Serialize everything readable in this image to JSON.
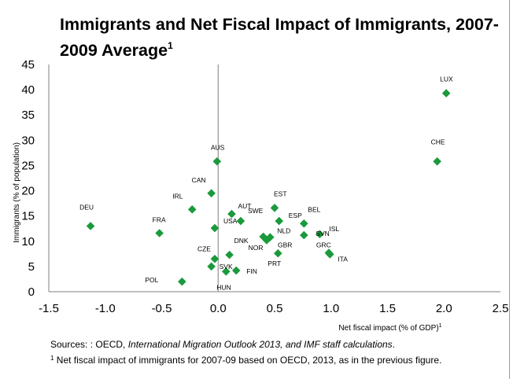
{
  "chart_data": {
    "type": "scatter",
    "title": "Immigrants and Net Fiscal Impact of Immigrants, 2007-2009 Average",
    "title_superscript": "1",
    "xlabel": "Net fiscal impact (% of GDP)",
    "xlabel_superscript": "1",
    "ylabel": "Immigrants (% of population)",
    "xlim": [
      -1.5,
      2.5
    ],
    "ylim": [
      0,
      45
    ],
    "xticks": [
      "-1.5",
      "-1.0",
      "-0.5",
      "0.0",
      "0.5",
      "1.0",
      "1.5",
      "2.0",
      "2.5"
    ],
    "yticks": [
      "0",
      "5",
      "10",
      "15",
      "20",
      "25",
      "30",
      "35",
      "40",
      "45"
    ],
    "grid": false,
    "legend": "none",
    "marker": "diamond",
    "marker_color": "#1a9a3c",
    "points": [
      {
        "label": "DEU",
        "x": -1.13,
        "y": 13.0
      },
      {
        "label": "FRA",
        "x": -0.52,
        "y": 11.6
      },
      {
        "label": "IRL",
        "x": -0.23,
        "y": 16.3
      },
      {
        "label": "USA",
        "x": -0.03,
        "y": 12.6
      },
      {
        "label": "CAN",
        "x": -0.06,
        "y": 19.5
      },
      {
        "label": "AUS",
        "x": -0.01,
        "y": 25.8
      },
      {
        "label": "AUT",
        "x": 0.12,
        "y": 15.4
      },
      {
        "label": "SWE",
        "x": 0.2,
        "y": 14.0
      },
      {
        "label": "GBR",
        "x": 0.43,
        "y": 10.2
      },
      {
        "label": "DNK",
        "x": 0.1,
        "y": 7.3
      },
      {
        "label": "CZE",
        "x": -0.03,
        "y": 6.5
      },
      {
        "label": "FIN",
        "x": 0.16,
        "y": 4.2
      },
      {
        "label": "HUN",
        "x": 0.07,
        "y": 4.0
      },
      {
        "label": "SVK",
        "x": -0.06,
        "y": 5.0
      },
      {
        "label": "POL",
        "x": -0.32,
        "y": 2.0
      },
      {
        "label": "NOR",
        "x": 0.4,
        "y": 10.9
      },
      {
        "label": "NLD",
        "x": 0.46,
        "y": 10.8
      },
      {
        "label": "EST",
        "x": 0.5,
        "y": 16.6
      },
      {
        "label": "ESP",
        "x": 0.54,
        "y": 14.0
      },
      {
        "label": "PRT",
        "x": 0.53,
        "y": 7.6
      },
      {
        "label": "BEL",
        "x": 0.76,
        "y": 13.5
      },
      {
        "label": "SVN",
        "x": 0.76,
        "y": 11.2
      },
      {
        "label": "ISL",
        "x": 0.9,
        "y": 11.4
      },
      {
        "label": "GRC",
        "x": 0.98,
        "y": 7.7
      },
      {
        "label": "ITA",
        "x": 0.99,
        "y": 7.4
      },
      {
        "label": "CHE",
        "x": 1.94,
        "y": 25.8
      },
      {
        "label": "LUX",
        "x": 2.02,
        "y": 39.3
      }
    ]
  },
  "sources": {
    "prefix": "Sources: : OECD, ",
    "italic": "International Migration Outlook 2013, and IMF staff calculations",
    "suffix": "."
  },
  "footnote": {
    "marker": "1",
    "text": " Net fiscal impact of immigrants for 2007-09 based on OECD, 2013, as in the previous figure."
  }
}
